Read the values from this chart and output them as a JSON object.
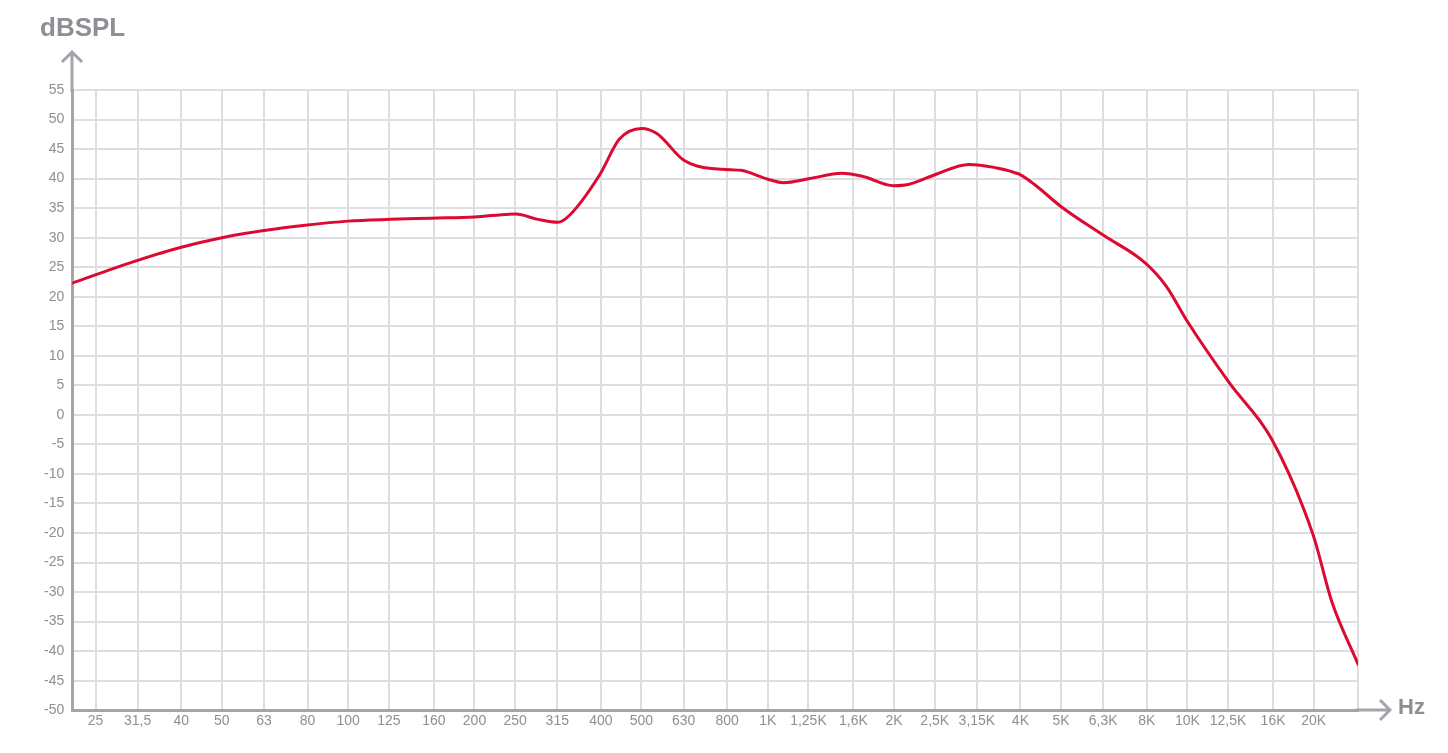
{
  "chart_data": {
    "type": "line",
    "xlabel": "Hz",
    "ylabel": "dBSPL",
    "log": "x",
    "grid": true,
    "marker": "none",
    "line_style": "solid",
    "x": [
      22,
      30.7,
      39.6,
      50,
      63,
      79,
      100,
      126,
      158,
      200,
      251,
      283,
      316,
      337,
      398,
      443,
      501,
      545,
      631,
      735,
      862,
      1000,
      1090,
      1259,
      1500,
      1680,
      1995,
      2160,
      2512,
      3010,
      3460,
      3981,
      4320,
      5012,
      6310,
      7943,
      8900,
      10000,
      12590,
      15850,
      19950,
      22080,
      25500
    ],
    "series": [
      {
        "color": "#dc0a32",
        "values": [
          22.3,
          25.9,
          28.3,
          30.0,
          31.2,
          32.1,
          32.8,
          33.1,
          33.3,
          33.5,
          34.0,
          33.1,
          32.6,
          33.8,
          40.7,
          46.7,
          48.5,
          47.6,
          43.1,
          41.7,
          41.4,
          39.9,
          39.3,
          40.0,
          40.9,
          40.4,
          38.8,
          39.0,
          40.7,
          42.4,
          41.9,
          40.7,
          39.0,
          35.2,
          30.4,
          25.7,
          21.8,
          15.8,
          5.4,
          -4.0,
          -20.4,
          -31.6,
          -42.2
        ]
      }
    ],
    "xlim": [
      22,
      25500
    ],
    "xticks": [
      25,
      {
        "value": 31.5,
        "label": "31,5"
      },
      40,
      50,
      63,
      80,
      100,
      125,
      160,
      200,
      250,
      315,
      400,
      500,
      630,
      800,
      {
        "value": 1000,
        "label": "1K"
      },
      {
        "value": 1250,
        "label": "1,25K"
      },
      {
        "value": 1600,
        "label": "1,6K"
      },
      {
        "value": 2000,
        "label": "2K"
      },
      {
        "value": 2500,
        "label": "2,5K"
      },
      {
        "value": 3150,
        "label": "3,15K"
      },
      {
        "value": 4000,
        "label": "4K"
      },
      {
        "value": 5000,
        "label": "5K"
      },
      {
        "value": 6300,
        "label": "6,3K"
      },
      {
        "value": 8000,
        "label": "8K"
      },
      {
        "value": 10000,
        "label": "10K"
      },
      {
        "value": 12500,
        "label": "12,5K"
      },
      {
        "value": 16000,
        "label": "16K"
      },
      {
        "value": 20000,
        "label": "20K"
      },
      {
        "value": 25500,
        "label": null
      }
    ],
    "ylim": [
      -50,
      55
    ],
    "yticks": [
      -50,
      -45,
      -40,
      -35,
      -30,
      -25,
      -20,
      -15,
      -10,
      -5,
      0,
      5,
      10,
      15,
      20,
      25,
      30,
      35,
      40,
      45,
      50,
      55
    ]
  }
}
